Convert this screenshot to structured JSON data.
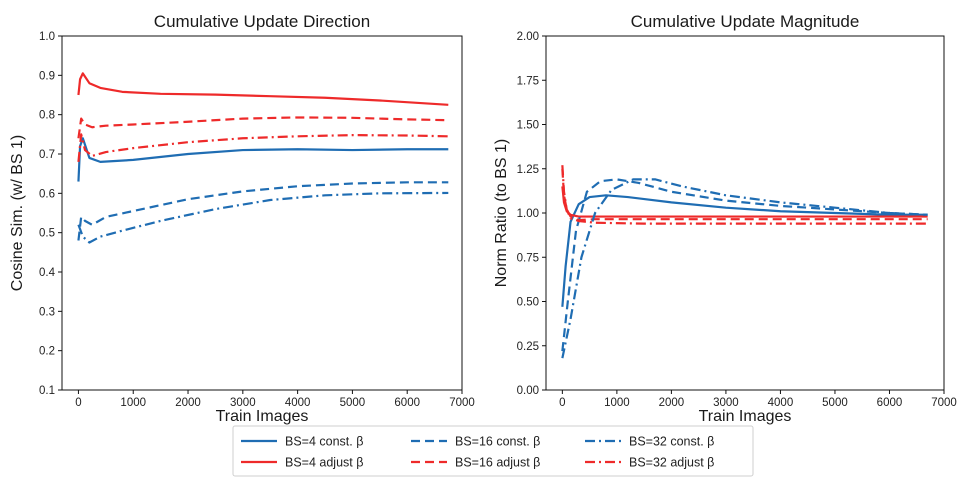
{
  "chart_data": [
    {
      "type": "line",
      "title": "Cumulative Update Direction",
      "xlabel": "Train Images",
      "ylabel": "Cosine Sim. (w/ BS 1)",
      "xlim": [
        -300,
        7000
      ],
      "ylim": [
        0.1,
        1.0
      ],
      "xticks": [
        0,
        1000,
        2000,
        3000,
        4000,
        5000,
        6000,
        7000
      ],
      "xtick_labels": [
        "0",
        "1000",
        "2000",
        "3000",
        "4000",
        "5000",
        "6000",
        "7000"
      ],
      "yticks": [
        0.1,
        0.2,
        0.3,
        0.4,
        0.5,
        0.6,
        0.7,
        0.8,
        0.9,
        1.0
      ],
      "ytick_labels": [
        "0.1",
        "0.2",
        "0.3",
        "0.4",
        "0.5",
        "0.6",
        "0.7",
        "0.8",
        "0.9",
        "1.0"
      ],
      "series": [
        {
          "name": "BS=4 const. β",
          "color": "#1f6db3",
          "dash": "solid",
          "x": [
            0,
            30,
            80,
            200,
            400,
            1000,
            2000,
            3000,
            4000,
            5000,
            6000,
            6750
          ],
          "y": [
            0.63,
            0.72,
            0.74,
            0.69,
            0.68,
            0.685,
            0.7,
            0.71,
            0.712,
            0.71,
            0.712,
            0.712
          ]
        },
        {
          "name": "BS=4 adjust β",
          "color": "#ee2a2a",
          "dash": "solid",
          "x": [
            0,
            30,
            80,
            200,
            400,
            800,
            1500,
            2500,
            3500,
            4500,
            5500,
            6750
          ],
          "y": [
            0.85,
            0.89,
            0.905,
            0.88,
            0.868,
            0.858,
            0.853,
            0.851,
            0.847,
            0.843,
            0.836,
            0.825
          ]
        },
        {
          "name": "BS=16 const. β",
          "color": "#1f6db3",
          "dash": "dash",
          "x": [
            0,
            50,
            120,
            250,
            500,
            1000,
            2000,
            3000,
            4000,
            5000,
            6000,
            6750
          ],
          "y": [
            0.48,
            0.54,
            0.53,
            0.52,
            0.54,
            0.555,
            0.585,
            0.605,
            0.618,
            0.625,
            0.628,
            0.628
          ]
        },
        {
          "name": "BS=16 adjust β",
          "color": "#ee2a2a",
          "dash": "dash",
          "x": [
            0,
            50,
            120,
            250,
            500,
            1000,
            2000,
            3000,
            4000,
            5000,
            6000,
            6750
          ],
          "y": [
            0.74,
            0.79,
            0.775,
            0.768,
            0.772,
            0.775,
            0.782,
            0.79,
            0.793,
            0.792,
            0.788,
            0.786
          ]
        },
        {
          "name": "BS=32 const. β",
          "color": "#1f6db3",
          "dash": "dashdot",
          "x": [
            0,
            80,
            200,
            400,
            800,
            1500,
            2500,
            3500,
            4500,
            5500,
            6750
          ],
          "y": [
            0.52,
            0.49,
            0.475,
            0.49,
            0.505,
            0.53,
            0.56,
            0.583,
            0.595,
            0.6,
            0.601
          ]
        },
        {
          "name": "BS=32 adjust β",
          "color": "#ee2a2a",
          "dash": "dashdot",
          "x": [
            0,
            50,
            120,
            250,
            500,
            1000,
            2000,
            3000,
            4000,
            5000,
            6000,
            6750
          ],
          "y": [
            0.68,
            0.75,
            0.71,
            0.695,
            0.705,
            0.715,
            0.73,
            0.74,
            0.745,
            0.748,
            0.747,
            0.745
          ]
        }
      ]
    },
    {
      "type": "line",
      "title": "Cumulative Update Magnitude",
      "xlabel": "Train Images",
      "ylabel": "Norm Ratio (to BS 1)",
      "xlim": [
        -300,
        7000
      ],
      "ylim": [
        0.0,
        2.0
      ],
      "xticks": [
        0,
        1000,
        2000,
        3000,
        4000,
        5000,
        6000,
        7000
      ],
      "xtick_labels": [
        "0",
        "1000",
        "2000",
        "3000",
        "4000",
        "5000",
        "6000",
        "7000"
      ],
      "yticks": [
        0.0,
        0.25,
        0.5,
        0.75,
        1.0,
        1.25,
        1.5,
        1.75,
        2.0
      ],
      "ytick_labels": [
        "0.00",
        "0.25",
        "0.50",
        "0.75",
        "1.00",
        "1.25",
        "1.50",
        "1.75",
        "2.00"
      ],
      "series": [
        {
          "name": "BS=4 const. β",
          "color": "#1f6db3",
          "dash": "solid",
          "x": [
            0,
            60,
            150,
            300,
            500,
            800,
            1200,
            2000,
            3000,
            4000,
            5000,
            6000,
            6700
          ],
          "y": [
            0.47,
            0.7,
            0.95,
            1.05,
            1.09,
            1.1,
            1.09,
            1.06,
            1.03,
            1.01,
            1.0,
            0.99,
            0.99
          ]
        },
        {
          "name": "BS=4 adjust β",
          "color": "#ee2a2a",
          "dash": "solid",
          "x": [
            0,
            30,
            80,
            150,
            300,
            600,
            1500,
            3000,
            5000,
            6700
          ],
          "y": [
            1.15,
            1.06,
            1.01,
            0.99,
            0.98,
            0.98,
            0.98,
            0.98,
            0.98,
            0.98
          ]
        },
        {
          "name": "BS=16 const. β",
          "color": "#1f6db3",
          "dash": "dash",
          "x": [
            0,
            100,
            250,
            450,
            700,
            1000,
            1400,
            2000,
            3000,
            4000,
            5000,
            6000,
            6700
          ],
          "y": [
            0.22,
            0.5,
            0.9,
            1.12,
            1.18,
            1.19,
            1.17,
            1.12,
            1.07,
            1.04,
            1.02,
            1.0,
            0.99
          ]
        },
        {
          "name": "BS=16 adjust β",
          "color": "#ee2a2a",
          "dash": "dash",
          "x": [
            0,
            30,
            80,
            150,
            300,
            600,
            1500,
            3000,
            5000,
            6700
          ],
          "y": [
            1.25,
            1.1,
            1.02,
            0.98,
            0.96,
            0.965,
            0.965,
            0.965,
            0.965,
            0.965
          ]
        },
        {
          "name": "BS=32 const. β",
          "color": "#1f6db3",
          "dash": "dashdot",
          "x": [
            0,
            150,
            350,
            600,
            900,
            1300,
            1700,
            2200,
            3000,
            4000,
            5000,
            6000,
            6700
          ],
          "y": [
            0.18,
            0.4,
            0.75,
            1.0,
            1.13,
            1.19,
            1.19,
            1.15,
            1.1,
            1.06,
            1.03,
            1.0,
            0.99
          ]
        },
        {
          "name": "BS=32 adjust β",
          "color": "#ee2a2a",
          "dash": "dashdot",
          "x": [
            0,
            30,
            80,
            150,
            300,
            600,
            1500,
            3000,
            5000,
            6700
          ],
          "y": [
            1.27,
            1.12,
            1.02,
            0.97,
            0.955,
            0.945,
            0.94,
            0.94,
            0.94,
            0.94
          ]
        }
      ]
    }
  ],
  "legend": {
    "placement": "bottom-center",
    "entries": [
      {
        "label": "BS=4 const. β",
        "color": "#1f6db3",
        "dash": "solid"
      },
      {
        "label": "BS=16 const. β",
        "color": "#1f6db3",
        "dash": "dash"
      },
      {
        "label": "BS=32 const. β",
        "color": "#1f6db3",
        "dash": "dashdot"
      },
      {
        "label": "BS=4 adjust β",
        "color": "#ee2a2a",
        "dash": "solid"
      },
      {
        "label": "BS=16 adjust β",
        "color": "#ee2a2a",
        "dash": "dash"
      },
      {
        "label": "BS=32 adjust β",
        "color": "#ee2a2a",
        "dash": "dashdot"
      }
    ]
  }
}
